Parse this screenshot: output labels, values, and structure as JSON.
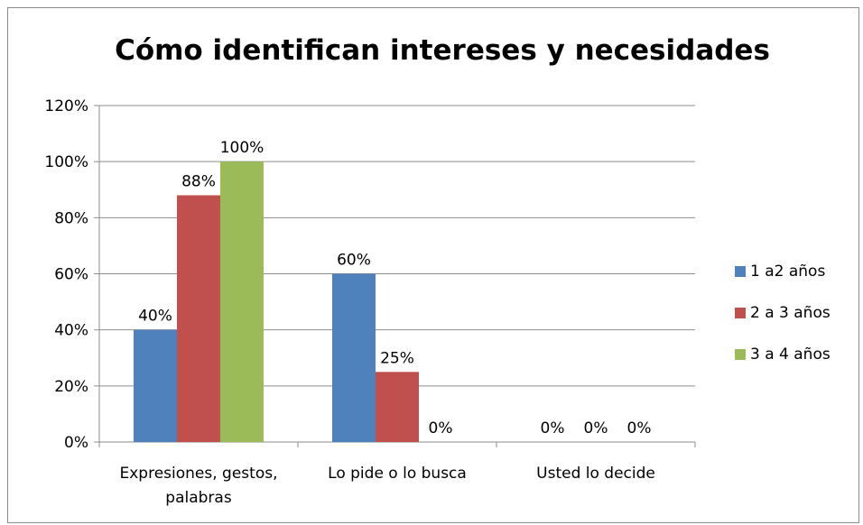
{
  "chart_data": {
    "type": "bar",
    "title": "Cómo identifican intereses y necesidades",
    "categories": [
      "Expresiones, gestos, palabras",
      "Lo pide o lo busca",
      "Usted lo decide"
    ],
    "category_lines": [
      [
        "Expresiones, gestos,",
        "palabras"
      ],
      [
        "Lo pide o lo busca"
      ],
      [
        "Usted lo decide"
      ]
    ],
    "series": [
      {
        "name": "1 a2 años",
        "color": "#4f81bd",
        "values": [
          40,
          60,
          0
        ]
      },
      {
        "name": "2 a 3 años",
        "color": "#c0504d",
        "values": [
          88,
          25,
          0
        ]
      },
      {
        "name": "3 a 4 años",
        "color": "#9bbb59",
        "values": [
          100,
          0,
          0
        ]
      }
    ],
    "ylim": [
      0,
      120
    ],
    "yticks": [
      0,
      20,
      40,
      60,
      80,
      100,
      120
    ],
    "tick_suffix": "%",
    "grid": true,
    "legend_position": "right"
  }
}
